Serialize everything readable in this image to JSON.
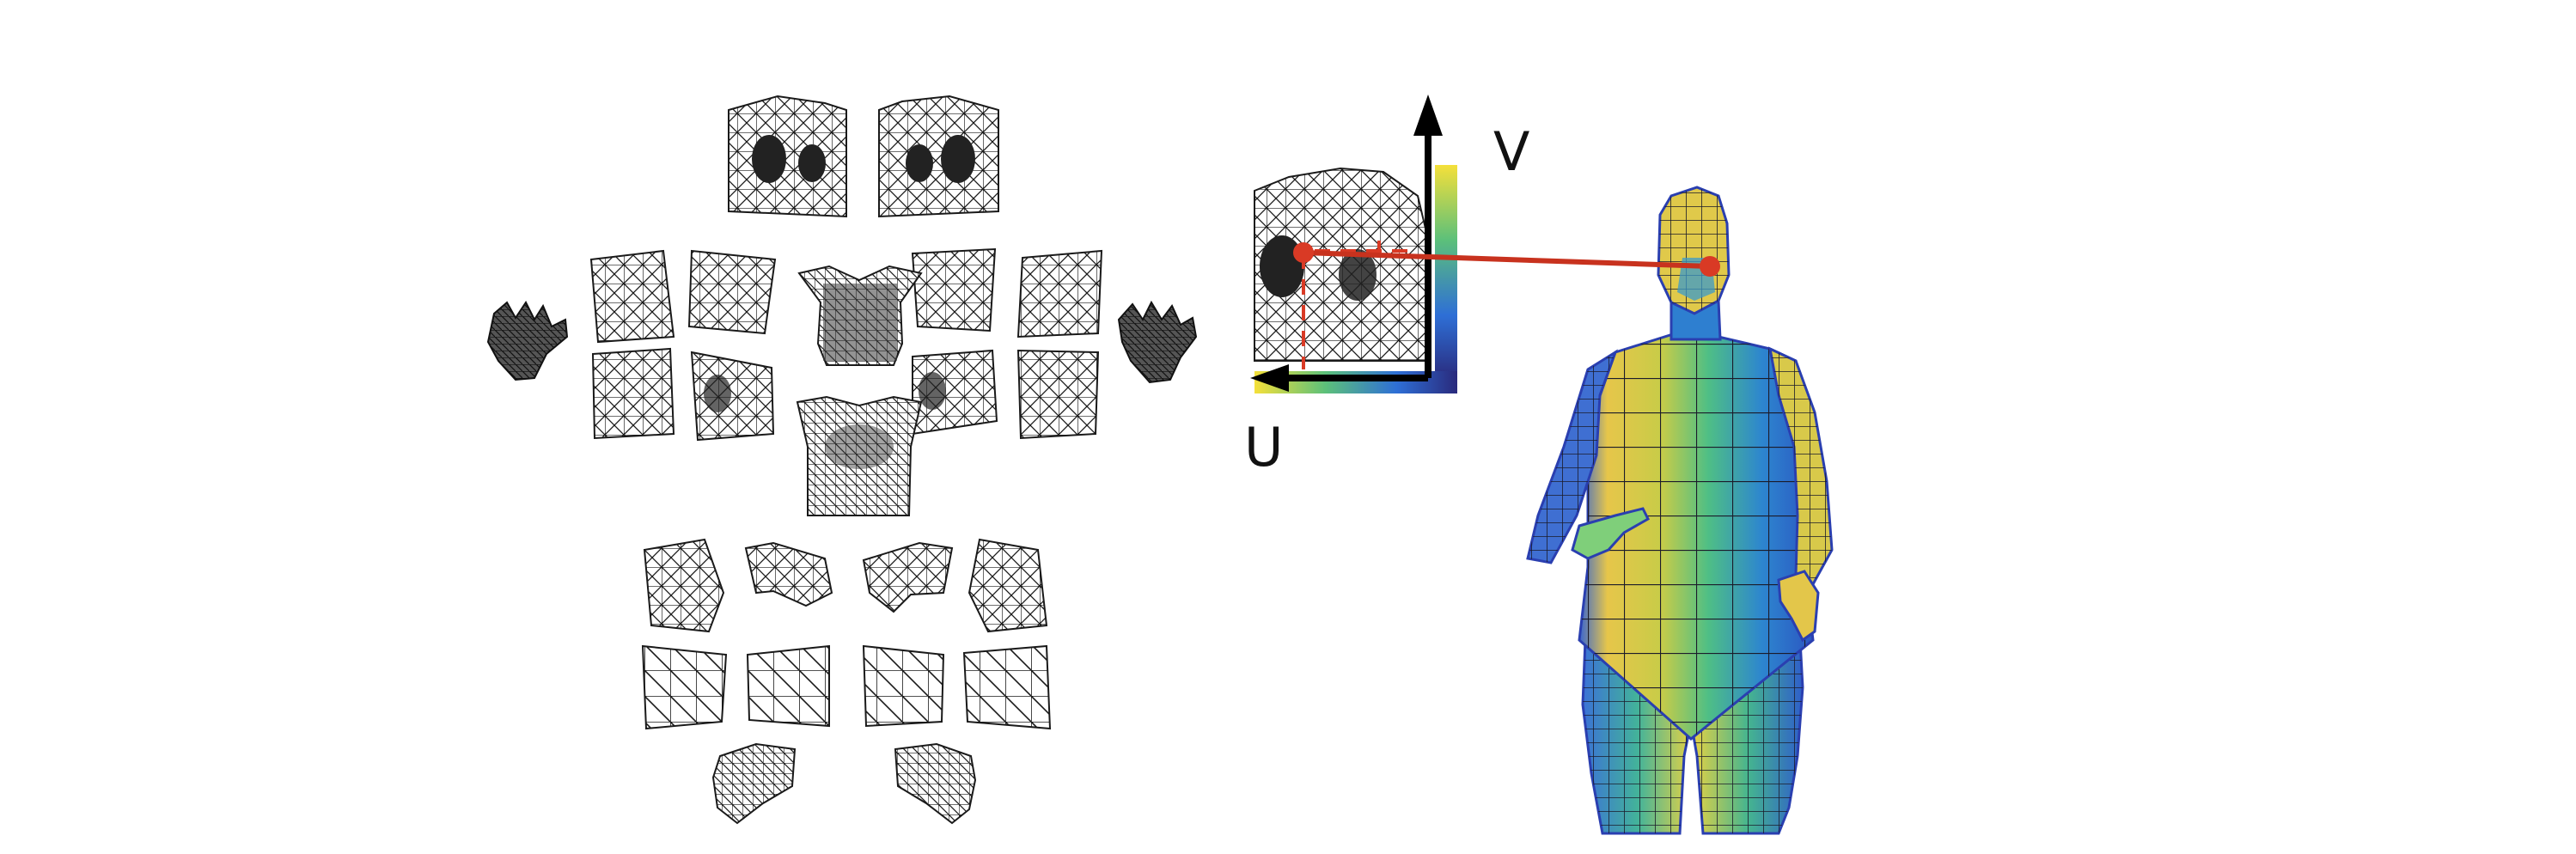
{
  "uv_map": {
    "u_label": "U",
    "v_label": "V"
  },
  "colors": {
    "mesh_fill": "#ffffff",
    "mesh_line": "#1a1a1a",
    "correspondence_line": "#c8321e",
    "correspondence_dot": "#d93a25",
    "axis": "#000000",
    "gradient_stops": [
      "#3a2a8c",
      "#2e6fd6",
      "#21a6b8",
      "#5cc07a",
      "#d9c23a",
      "#f5e03a"
    ]
  },
  "icons": {
    "u_axis_arrow": "arrow-left-icon",
    "v_axis_arrow": "arrow-up-icon"
  }
}
